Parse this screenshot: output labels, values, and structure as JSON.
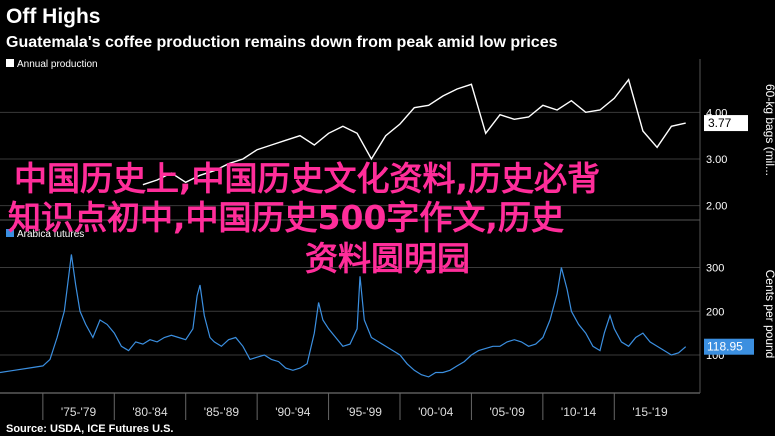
{
  "header": {
    "kicker": "Off Highs",
    "headline": "Guatemala's coffee production remains down from peak amid low prices"
  },
  "source": "Source: USDA, ICE Futures U.S.",
  "overlay_text": {
    "line1": "中国历史上,中国历史文化资料,历史必背",
    "line2": "知识点初中,中国历史500字作文,历史",
    "line3": "资料圆明园"
  },
  "colors": {
    "background": "#000000",
    "top_line": "#ffffff",
    "bottom_line": "#3b8fe0",
    "grid": "#3a3a3a",
    "overlay": "#ff2d9a"
  },
  "chart_data": [
    {
      "type": "line",
      "title": "",
      "legend": [
        "Annual production"
      ],
      "legend_placement": "top-left",
      "ylabel": "60-kg bags (mil...",
      "yticks": [
        "2.00",
        "3.00",
        "4.00"
      ],
      "ylim": [
        1.8,
        4.8
      ],
      "last_value_label": "3.77",
      "series": [
        {
          "name": "Annual production",
          "x": [
            1982,
            1983,
            1984,
            1985,
            1986,
            1987,
            1988,
            1989,
            1990,
            1991,
            1992,
            1993,
            1994,
            1995,
            1996,
            1997,
            1998,
            1999,
            2000,
            2001,
            2002,
            2003,
            2004,
            2005,
            2006,
            2007,
            2008,
            2009,
            2010,
            2011,
            2012,
            2013,
            2014,
            2015,
            2016,
            2017,
            2018,
            2019,
            2020
          ],
          "y": [
            2.45,
            2.55,
            2.7,
            2.5,
            2.65,
            2.75,
            2.9,
            3.0,
            3.2,
            3.3,
            3.4,
            3.5,
            3.3,
            3.55,
            3.7,
            3.55,
            3.0,
            3.5,
            3.75,
            4.1,
            4.15,
            4.35,
            4.5,
            4.6,
            3.55,
            3.95,
            3.85,
            3.9,
            4.15,
            4.05,
            4.25,
            4.0,
            4.05,
            4.3,
            4.7,
            3.6,
            3.25,
            3.7,
            3.77
          ]
        }
      ]
    },
    {
      "type": "line",
      "title": "",
      "legend": [
        "Arabica futures"
      ],
      "legend_placement": "top-left",
      "ylabel": "Cents per pound",
      "yticks": [
        "100",
        "200",
        "300"
      ],
      "ylim": [
        20,
        340
      ],
      "last_value_label": "118.95",
      "x_tick_labels": [
        "'75-'79",
        "'80-'84",
        "'85-'89",
        "'90-'94",
        "'95-'99",
        "'00-'04",
        "'05-'09",
        "'10-'14",
        "'15-'19"
      ],
      "series": [
        {
          "name": "Arabica futures",
          "x": [
            1972,
            1973,
            1974,
            1975,
            1975.5,
            1976,
            1976.5,
            1977,
            1977.3,
            1977.6,
            1978,
            1978.5,
            1979,
            1979.5,
            1980,
            1980.5,
            1981,
            1981.5,
            1982,
            1982.5,
            1983,
            1983.5,
            1984,
            1984.5,
            1985,
            1985.5,
            1985.8,
            1986,
            1986.3,
            1986.7,
            1987,
            1987.5,
            1988,
            1988.5,
            1989,
            1989.5,
            1990,
            1990.5,
            1991,
            1991.5,
            1992,
            1992.5,
            1993,
            1993.5,
            1994,
            1994.3,
            1994.6,
            1995,
            1995.5,
            1996,
            1996.5,
            1997,
            1997.2,
            1997.5,
            1998,
            1998.5,
            1999,
            1999.5,
            2000,
            2000.5,
            2001,
            2001.5,
            2002,
            2002.5,
            2003,
            2003.5,
            2004,
            2004.5,
            2005,
            2005.5,
            2006,
            2006.5,
            2007,
            2007.5,
            2008,
            2008.5,
            2009,
            2009.5,
            2010,
            2010.5,
            2011,
            2011.3,
            2011.7,
            2012,
            2012.5,
            2013,
            2013.5,
            2014,
            2014.3,
            2014.7,
            2015,
            2015.5,
            2016,
            2016.5,
            2017,
            2017.5,
            2018,
            2018.5,
            2019,
            2019.5,
            2020
          ],
          "y": [
            60,
            65,
            70,
            75,
            90,
            140,
            200,
            330,
            260,
            200,
            170,
            140,
            180,
            170,
            150,
            120,
            110,
            130,
            125,
            135,
            130,
            140,
            145,
            140,
            135,
            160,
            235,
            260,
            190,
            140,
            130,
            120,
            135,
            140,
            120,
            90,
            95,
            100,
            90,
            85,
            70,
            65,
            70,
            80,
            150,
            220,
            180,
            160,
            140,
            120,
            125,
            160,
            280,
            180,
            140,
            130,
            120,
            110,
            100,
            80,
            65,
            55,
            50,
            60,
            60,
            65,
            75,
            85,
            100,
            110,
            115,
            120,
            120,
            130,
            135,
            130,
            120,
            125,
            140,
            180,
            240,
            300,
            250,
            200,
            170,
            150,
            120,
            110,
            150,
            190,
            160,
            130,
            120,
            140,
            150,
            130,
            120,
            110,
            100,
            105,
            118.95
          ]
        }
      ]
    }
  ]
}
